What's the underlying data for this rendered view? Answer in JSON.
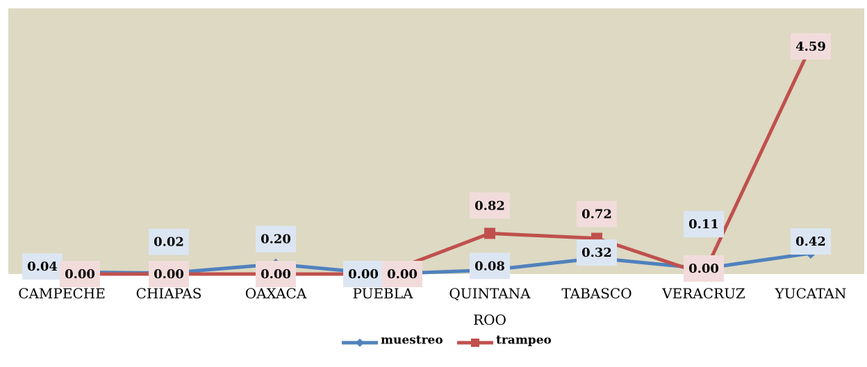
{
  "chart_data": {
    "type": "line",
    "title": "",
    "xlabel": "",
    "ylabel": "",
    "categories": [
      "CAMPECHE",
      "CHIAPAS",
      "OAXACA",
      "PUEBLA",
      "QUINTANA ROO",
      "TABASCO",
      "VERACRUZ",
      "YUCATAN"
    ],
    "category_lines": [
      [
        "CAMPECHE"
      ],
      [
        "CHIAPAS"
      ],
      [
        "OAXACA"
      ],
      [
        "PUEBLA"
      ],
      [
        "QUINTANA",
        "ROO"
      ],
      [
        "TABASCO"
      ],
      [
        "VERACRUZ"
      ],
      [
        "YUCATAN"
      ]
    ],
    "ylim": [
      0,
      5
    ],
    "grid": false,
    "legend_position": "bottom",
    "plot_background": "#ddd9c3",
    "series": [
      {
        "name": "muestreo",
        "color": "#4f81bd",
        "label_bg": "#dce6f2",
        "marker": "diamond",
        "values": [
          0.04,
          0.02,
          0.2,
          0.0,
          0.08,
          0.32,
          0.11,
          0.42
        ],
        "labels": [
          "0.04",
          "0.02",
          "0.20",
          "0.00",
          "0.08",
          "0.32",
          "0.11",
          "0.42"
        ]
      },
      {
        "name": "trampeo",
        "color": "#c0504d",
        "label_bg": "#f2dcdb",
        "marker": "square",
        "values": [
          0.0,
          0.0,
          0.0,
          0.0,
          0.82,
          0.72,
          0.0,
          4.59
        ],
        "labels": [
          "0.00",
          "0.00",
          "0.00",
          "0.00",
          "0.82",
          "0.72",
          "0.00",
          "4.59"
        ]
      }
    ]
  }
}
